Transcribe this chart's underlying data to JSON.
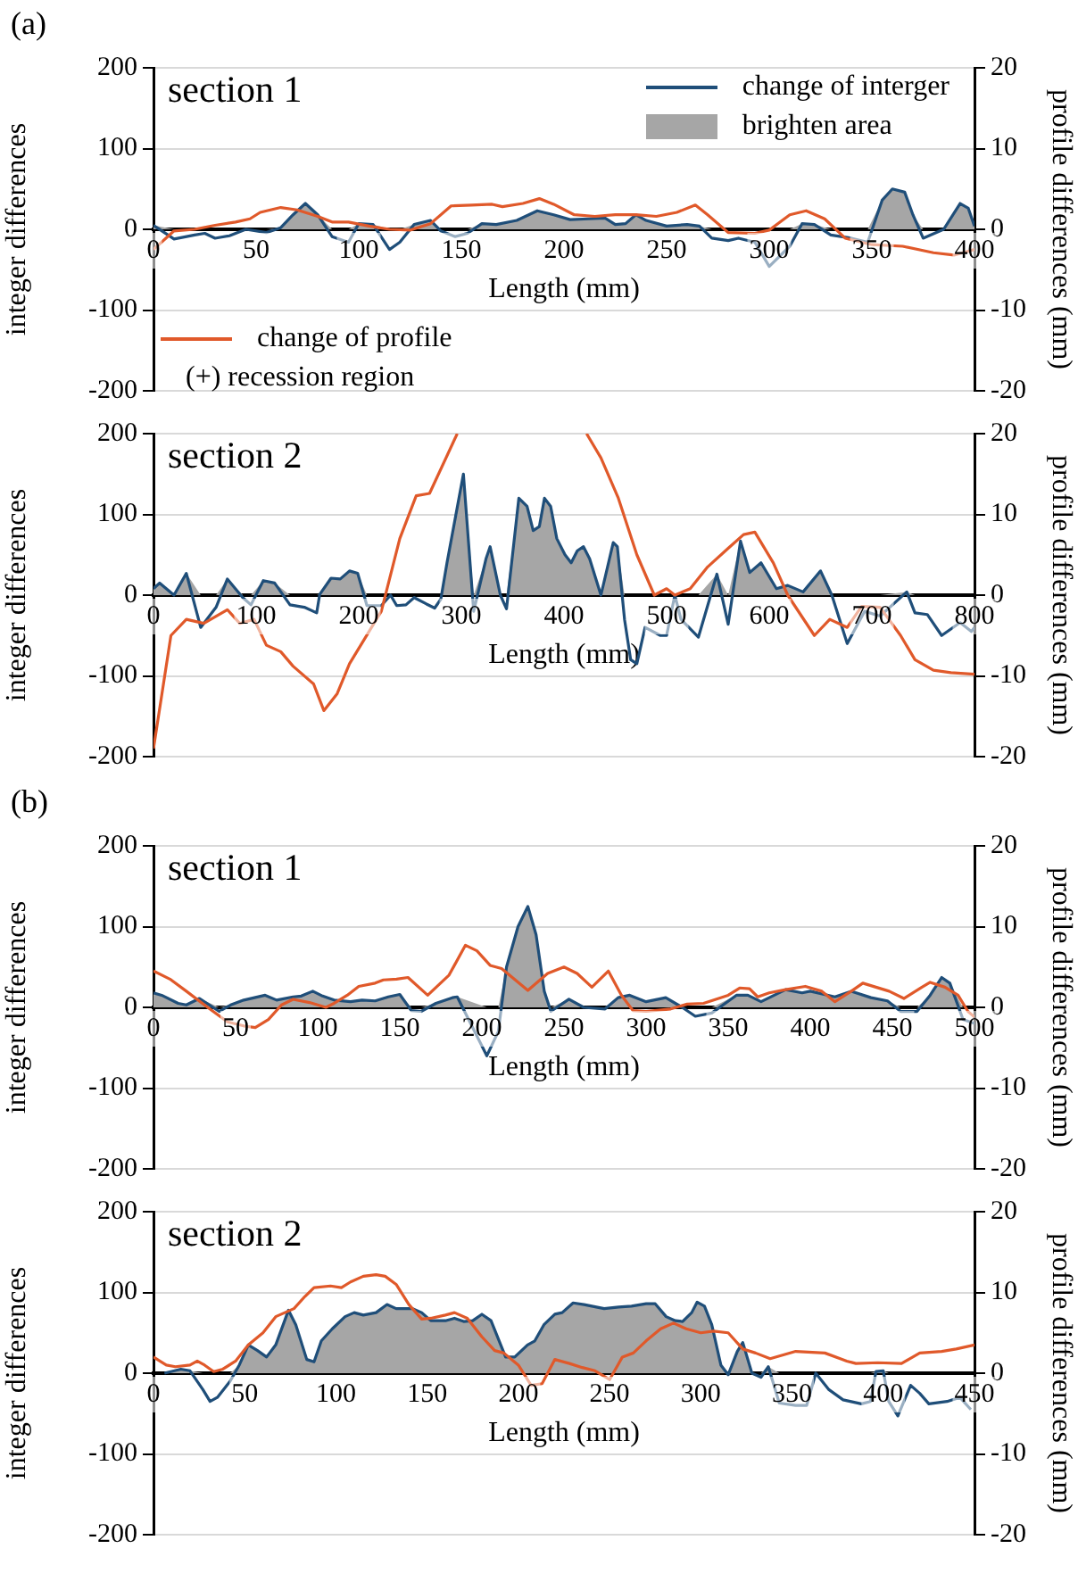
{
  "chart_data": [
    {
      "type": "line",
      "title": "section 1",
      "xlabel": "Length (mm)",
      "ylabel": "integer differences",
      "y2label": "profile differences (mm)",
      "annotations": [
        "(a)",
        "(+) recession region"
      ],
      "xlim": [
        0,
        400
      ],
      "xticks": [
        0,
        50,
        100,
        150,
        200,
        250,
        300,
        350,
        400
      ],
      "ylim": [
        -200,
        200
      ],
      "yticks": [
        -200,
        -100,
        0,
        100,
        200
      ],
      "y2lim": [
        -20,
        20
      ],
      "y2ticks": [
        -20,
        -10,
        0,
        10,
        20
      ],
      "grid": "y",
      "legend": "top right",
      "marker": "none",
      "line_style": "solid",
      "series": [
        {
          "name": "change of interger",
          "type": "line",
          "color": "#1f4e79",
          "x": [
            0,
            10,
            20,
            25,
            30,
            37,
            45,
            55,
            62,
            68,
            74,
            80,
            87,
            95,
            100,
            107,
            115,
            120,
            127,
            135,
            140,
            147,
            153,
            160,
            167,
            177,
            187,
            195,
            203,
            212,
            220,
            225,
            230,
            235,
            240,
            250,
            260,
            266,
            272,
            280,
            285,
            293,
            300,
            310,
            316,
            322,
            330,
            340,
            348,
            355,
            360,
            366,
            370,
            375,
            385,
            393,
            397,
            400
          ],
          "values": [
            5,
            -12,
            -7,
            -5,
            -11,
            -8,
            0,
            -4,
            2,
            18,
            32,
            18,
            -9,
            -16,
            7,
            6,
            -25,
            -16,
            6,
            11,
            -2,
            -9,
            -5,
            7,
            6,
            11,
            23,
            18,
            12,
            13,
            14,
            6,
            7,
            18,
            11,
            4,
            6,
            4,
            -11,
            -14,
            -11,
            -16,
            -46,
            -21,
            7,
            6,
            -7,
            -11,
            -16,
            36,
            50,
            46,
            18,
            -11,
            0,
            32,
            26,
            4
          ]
        },
        {
          "name": "brighten area",
          "type": "area",
          "color": "#a6a6a6",
          "x": [
            0,
            10,
            20,
            25,
            30,
            37,
            45,
            55,
            62,
            68,
            74,
            80,
            87,
            95,
            100,
            107,
            115,
            120,
            127,
            135,
            140,
            147,
            153,
            160,
            167,
            177,
            187,
            195,
            203,
            212,
            220,
            225,
            230,
            235,
            240,
            250,
            260,
            266,
            272,
            280,
            285,
            293,
            300,
            310,
            316,
            322,
            330,
            340,
            348,
            355,
            360,
            366,
            370,
            375,
            385,
            393,
            397,
            400
          ],
          "values": [
            5,
            0,
            0,
            0,
            0,
            0,
            0,
            0,
            2,
            18,
            32,
            18,
            0,
            0,
            7,
            6,
            0,
            0,
            6,
            11,
            0,
            0,
            0,
            7,
            6,
            11,
            23,
            18,
            12,
            13,
            14,
            6,
            7,
            18,
            11,
            4,
            6,
            4,
            0,
            0,
            0,
            0,
            0,
            0,
            7,
            6,
            0,
            0,
            0,
            36,
            50,
            46,
            18,
            0,
            0,
            32,
            26,
            4
          ]
        },
        {
          "name": "change of profile",
          "type": "line",
          "axis": "y2",
          "color": "#e0592a",
          "x": [
            0,
            10,
            20,
            30,
            40,
            47,
            52,
            62,
            70,
            80,
            87,
            95,
            105,
            115,
            125,
            135,
            145,
            155,
            165,
            170,
            180,
            188,
            195,
            205,
            215,
            225,
            235,
            245,
            255,
            264,
            270,
            280,
            293,
            300,
            310,
            318,
            327,
            337,
            350,
            365,
            380,
            390,
            400
          ],
          "values": [
            -2.5,
            -0.2,
            0,
            0.5,
            0.9,
            1.3,
            2.1,
            2.7,
            2.4,
            1.6,
            0.9,
            0.9,
            0.4,
            0,
            -0.1,
            0.7,
            2.9,
            3,
            3.1,
            2.8,
            3.2,
            3.8,
            3.1,
            1.8,
            1.6,
            1.8,
            1.8,
            1.6,
            2.1,
            3,
            1.8,
            -0.4,
            -0.5,
            -0.1,
            1.8,
            2.3,
            1.3,
            -1.1,
            -1.9,
            -2.1,
            -2.9,
            -3.2,
            -2.5
          ]
        }
      ]
    },
    {
      "type": "line",
      "title": "section 2",
      "xlabel": "Length (mm)",
      "ylabel": "integer differences",
      "y2label": "profile differences (mm)",
      "xlim": [
        0,
        800
      ],
      "xticks": [
        0,
        100,
        200,
        300,
        400,
        500,
        600,
        700,
        800
      ],
      "ylim": [
        -200,
        200
      ],
      "yticks": [
        -200,
        -100,
        0,
        100,
        200
      ],
      "y2lim": [
        -20,
        20
      ],
      "y2ticks": [
        -20,
        -10,
        0,
        10,
        20
      ],
      "grid": "y",
      "marker": "none",
      "line_style": "solid",
      "series": [
        {
          "type": "area",
          "color": "#a6a6a6",
          "x": [
            0,
            6,
            20,
            32,
            46,
            61,
            72,
            87,
            95,
            107,
            118,
            133,
            147,
            159,
            162,
            173,
            182,
            191,
            199,
            208,
            222,
            231,
            237,
            246,
            254,
            266,
            274,
            280,
            286,
            302,
            312,
            324,
            328,
            338,
            344,
            356,
            364,
            370,
            376,
            381,
            387,
            393,
            401,
            407,
            413,
            419,
            425,
            436,
            448,
            452,
            459,
            465,
            471,
            479,
            494,
            500,
            508,
            514,
            531,
            549,
            560,
            572,
            581,
            592,
            607,
            618,
            633,
            650,
            661,
            676,
            693,
            708,
            734,
            742,
            754,
            768,
            786,
            797,
            800
          ],
          "values": [
            8,
            15,
            0,
            27,
            0,
            0,
            20,
            0,
            0,
            18,
            15,
            0,
            0,
            0,
            1,
            21,
            20,
            30,
            27,
            0,
            0,
            0,
            0,
            0,
            0,
            0,
            0,
            0,
            40,
            150,
            0,
            45,
            60,
            0,
            0,
            120,
            110,
            80,
            85,
            120,
            110,
            70,
            50,
            40,
            55,
            60,
            45,
            0,
            65,
            60,
            0,
            0,
            0,
            0,
            0,
            0,
            0,
            0,
            0,
            26,
            0,
            67,
            28,
            40,
            8,
            12,
            4,
            30,
            0,
            0,
            0,
            0,
            4,
            0,
            0,
            0,
            0,
            0,
            0
          ]
        },
        {
          "type": "line",
          "color": "#1f4e79",
          "x": [
            0,
            6,
            20,
            32,
            46,
            61,
            72,
            87,
            95,
            107,
            118,
            133,
            147,
            159,
            162,
            173,
            182,
            191,
            199,
            208,
            222,
            231,
            237,
            246,
            254,
            266,
            274,
            280,
            286,
            302,
            312,
            324,
            328,
            338,
            344,
            356,
            364,
            370,
            376,
            381,
            387,
            393,
            401,
            407,
            413,
            419,
            425,
            436,
            448,
            452,
            459,
            465,
            471,
            479,
            494,
            500,
            508,
            514,
            531,
            549,
            560,
            572,
            581,
            592,
            607,
            618,
            633,
            650,
            661,
            676,
            693,
            708,
            734,
            742,
            754,
            768,
            786,
            797,
            800
          ],
          "values": [
            8,
            15,
            0,
            27,
            -40,
            -15,
            20,
            -3,
            -12,
            18,
            15,
            -12,
            -15,
            -22,
            1,
            21,
            20,
            30,
            27,
            -13,
            -13,
            0,
            -13,
            -12,
            -3,
            -11,
            -16,
            -5,
            40,
            150,
            -20,
            45,
            60,
            0,
            -17,
            120,
            110,
            80,
            85,
            120,
            110,
            70,
            50,
            40,
            55,
            60,
            45,
            0,
            65,
            60,
            -30,
            -80,
            -85,
            -40,
            -50,
            -50,
            0,
            -30,
            -52,
            26,
            -36,
            67,
            28,
            40,
            8,
            12,
            4,
            30,
            0,
            -60,
            -20,
            -26,
            4,
            -22,
            -24,
            -50,
            -34,
            -45,
            -40
          ]
        },
        {
          "type": "line",
          "axis": "y2",
          "color": "#e0592a",
          "x": [
            0,
            17,
            32,
            49,
            72,
            84,
            98,
            110,
            124,
            136,
            156,
            166,
            179,
            191,
            222,
            240,
            256,
            269,
            296,
            360,
            422,
            436,
            453,
            471,
            488,
            500,
            508,
            523,
            540,
            560,
            575,
            586,
            604,
            618,
            644,
            659,
            676,
            690,
            708,
            728,
            742,
            760,
            777,
            800
          ],
          "values": [
            -19,
            -5,
            -3,
            -3.5,
            -1.8,
            -3.5,
            -3,
            -6.2,
            -7,
            -8.8,
            -11,
            -14.3,
            -12.2,
            -8.5,
            -2,
            7,
            12.3,
            12.6,
            20,
            null,
            20,
            17,
            12,
            5,
            0,
            0.8,
            0,
            0.8,
            3.5,
            5.8,
            7.5,
            7.8,
            4,
            0,
            -5,
            -3,
            -4,
            -1.4,
            -1.5,
            -5,
            -8,
            -9.3,
            -9.6,
            -9.8
          ]
        }
      ]
    },
    {
      "type": "line",
      "title": "section 1",
      "xlabel": "Length (mm)",
      "ylabel": "integer differences",
      "y2label": "profile differences (mm)",
      "annotations": [
        "(b)"
      ],
      "xlim": [
        0,
        500
      ],
      "xticks": [
        0,
        50,
        100,
        150,
        200,
        250,
        300,
        350,
        400,
        450,
        500
      ],
      "ylim": [
        -200,
        200
      ],
      "yticks": [
        -200,
        -100,
        0,
        100,
        200
      ],
      "y2lim": [
        -20,
        20
      ],
      "y2ticks": [
        -20,
        -10,
        0,
        10,
        20
      ],
      "grid": "y",
      "marker": "none",
      "line_style": "solid",
      "series": [
        {
          "type": "area",
          "color": "#a6a6a6",
          "x": [
            0,
            5,
            15,
            20,
            28,
            40,
            47,
            55,
            68,
            75,
            85,
            90,
            97,
            103,
            110,
            120,
            127,
            135,
            143,
            150,
            157,
            163,
            172,
            182,
            185,
            203,
            210,
            215,
            222,
            228,
            233,
            238,
            242,
            253,
            262,
            275,
            283,
            290,
            300,
            312,
            322,
            330,
            340,
            355,
            362,
            370,
            385,
            395,
            400,
            415,
            425,
            437,
            447,
            455,
            465,
            473,
            480,
            485,
            493,
            500
          ],
          "values": [
            18,
            15,
            5,
            3,
            11,
            0,
            3,
            9,
            15,
            9,
            13,
            14,
            20,
            14,
            9,
            7,
            9,
            8,
            13,
            16,
            0,
            0,
            5,
            12,
            13,
            0,
            0,
            50,
            100,
            125,
            90,
            20,
            0,
            10,
            0,
            0,
            12,
            15,
            7,
            12,
            0,
            0,
            0,
            15,
            15,
            7,
            22,
            18,
            20,
            13,
            20,
            12,
            8,
            0,
            0,
            15,
            37,
            30,
            0,
            0
          ]
        },
        {
          "type": "line",
          "color": "#1f4e79",
          "x": [
            0,
            5,
            15,
            20,
            28,
            40,
            47,
            55,
            68,
            75,
            85,
            90,
            97,
            103,
            110,
            120,
            127,
            135,
            143,
            150,
            157,
            163,
            172,
            182,
            185,
            203,
            210,
            215,
            222,
            228,
            233,
            238,
            242,
            253,
            262,
            275,
            283,
            290,
            300,
            312,
            322,
            330,
            340,
            355,
            362,
            370,
            385,
            395,
            400,
            415,
            425,
            437,
            447,
            455,
            465,
            473,
            480,
            485,
            493,
            500
          ],
          "values": [
            18,
            15,
            5,
            3,
            11,
            -5,
            3,
            9,
            15,
            9,
            13,
            14,
            20,
            14,
            9,
            7,
            9,
            8,
            13,
            16,
            -4,
            -5,
            5,
            12,
            13,
            -60,
            -30,
            50,
            100,
            125,
            90,
            20,
            -5,
            10,
            0,
            -2,
            12,
            15,
            7,
            12,
            0,
            -11,
            -7,
            15,
            15,
            7,
            22,
            18,
            20,
            13,
            20,
            12,
            8,
            -5,
            -5,
            15,
            37,
            30,
            -15,
            -20
          ]
        },
        {
          "type": "line",
          "axis": "y2",
          "color": "#e0592a",
          "x": [
            0,
            10,
            20,
            33,
            45,
            55,
            62,
            70,
            78,
            85,
            95,
            105,
            110,
            118,
            125,
            135,
            140,
            148,
            155,
            167,
            180,
            190,
            197,
            205,
            212,
            228,
            240,
            250,
            258,
            267,
            277,
            285,
            292,
            300,
            315,
            325,
            335,
            350,
            357,
            363,
            368,
            375,
            385,
            397,
            407,
            415,
            425,
            432,
            440,
            448,
            457,
            468,
            473,
            482,
            490,
            496,
            500
          ],
          "values": [
            4.5,
            3.5,
            2,
            0,
            -1.8,
            -2.3,
            -2.5,
            -1.5,
            0.3,
            1,
            0.6,
            0,
            0.5,
            1.5,
            2.6,
            3,
            3.4,
            3.5,
            3.7,
            1.5,
            4,
            7.7,
            7,
            5.2,
            4.8,
            2.1,
            4.2,
            5,
            4.2,
            2.5,
            4.5,
            1.5,
            -0.4,
            -0.5,
            -0.2,
            0.4,
            0.5,
            1.5,
            2.4,
            2.3,
            1.3,
            1.8,
            2.2,
            2.6,
            2,
            0.7,
            2,
            3,
            2.5,
            2,
            1.1,
            2.5,
            3.1,
            2.5,
            1.5,
            -0.5,
            -1.2
          ]
        }
      ]
    },
    {
      "type": "line",
      "title": "section 2",
      "xlabel": "Length (mm)",
      "ylabel": "integer differences",
      "y2label": "profile differences (mm)",
      "xlim": [
        0,
        450
      ],
      "xticks": [
        0,
        50,
        100,
        150,
        200,
        250,
        300,
        350,
        400,
        450
      ],
      "ylim": [
        -200,
        200
      ],
      "yticks": [
        -200,
        -100,
        0,
        100,
        200
      ],
      "y2lim": [
        -20,
        20
      ],
      "y2ticks": [
        -20,
        -10,
        0,
        10,
        20
      ],
      "grid": "y",
      "marker": "none",
      "line_style": "solid",
      "series": [
        {
          "type": "area",
          "color": "#a6a6a6",
          "x": [
            6,
            15,
            20,
            27,
            31,
            35,
            42,
            47,
            52,
            57,
            62,
            67,
            74,
            78,
            84,
            88,
            92,
            98,
            105,
            110,
            115,
            122,
            128,
            133,
            142,
            147,
            152,
            160,
            165,
            170,
            175,
            180,
            185,
            193,
            198,
            205,
            209,
            214,
            220,
            224,
            230,
            236,
            247,
            255,
            262,
            270,
            275,
            281,
            286,
            290,
            295,
            298,
            302,
            306,
            311,
            315,
            320,
            323,
            328,
            333,
            337,
            343,
            352,
            358,
            363,
            370,
            378,
            388,
            393,
            396,
            400,
            403,
            408,
            415,
            420,
            425,
            435,
            442,
            448
          ],
          "values": [
            0,
            5,
            3,
            0,
            0,
            0,
            0,
            10,
            35,
            28,
            20,
            35,
            78,
            60,
            17,
            14,
            40,
            55,
            70,
            75,
            72,
            75,
            85,
            80,
            80,
            75,
            65,
            65,
            68,
            64,
            65,
            73,
            65,
            20,
            20,
            35,
            40,
            60,
            73,
            75,
            87,
            85,
            80,
            82,
            83,
            86,
            86,
            70,
            65,
            64,
            75,
            88,
            83,
            60,
            10,
            0,
            27,
            38,
            0,
            0,
            8,
            0,
            0,
            0,
            0,
            0,
            0,
            0,
            0,
            2,
            3,
            0,
            0,
            0,
            0,
            0,
            0,
            0,
            0
          ]
        },
        {
          "type": "line",
          "color": "#1f4e79",
          "x": [
            6,
            15,
            20,
            27,
            31,
            35,
            42,
            47,
            52,
            57,
            62,
            67,
            74,
            78,
            84,
            88,
            92,
            98,
            105,
            110,
            115,
            122,
            128,
            133,
            142,
            147,
            152,
            160,
            165,
            170,
            175,
            180,
            185,
            193,
            198,
            205,
            209,
            214,
            220,
            224,
            230,
            236,
            247,
            255,
            262,
            270,
            275,
            281,
            286,
            290,
            295,
            298,
            302,
            306,
            311,
            315,
            320,
            323,
            328,
            333,
            337,
            343,
            352,
            358,
            363,
            370,
            378,
            388,
            393,
            396,
            400,
            403,
            408,
            415,
            420,
            425,
            435,
            442,
            448
          ],
          "values": [
            0,
            5,
            3,
            -20,
            -35,
            -30,
            -10,
            10,
            35,
            28,
            20,
            35,
            78,
            60,
            17,
            14,
            40,
            55,
            70,
            75,
            72,
            75,
            85,
            80,
            80,
            75,
            65,
            65,
            68,
            64,
            65,
            73,
            65,
            20,
            20,
            35,
            40,
            60,
            73,
            75,
            87,
            85,
            80,
            82,
            83,
            86,
            86,
            70,
            65,
            64,
            75,
            88,
            83,
            60,
            10,
            -2,
            27,
            38,
            0,
            -5,
            8,
            -37,
            -40,
            -40,
            0,
            -20,
            -33,
            -38,
            -35,
            2,
            3,
            -35,
            -53,
            -15,
            -25,
            -38,
            -35,
            -30,
            -45
          ]
        },
        {
          "type": "line",
          "axis": "y2",
          "color": "#e0592a",
          "x": [
            0,
            7,
            12,
            20,
            24,
            28,
            33,
            38,
            45,
            52,
            60,
            67,
            72,
            77,
            83,
            88,
            97,
            103,
            108,
            115,
            122,
            127,
            133,
            140,
            147,
            152,
            160,
            165,
            172,
            180,
            187,
            192,
            200,
            207,
            213,
            220,
            228,
            235,
            242,
            250,
            257,
            263,
            270,
            278,
            285,
            292,
            300,
            307,
            315,
            323,
            330,
            338,
            352,
            368,
            380,
            385,
            397,
            410,
            420,
            432,
            440,
            450
          ],
          "values": [
            2,
            1,
            0.8,
            1,
            1.5,
            1,
            0.2,
            0.5,
            1.5,
            3.5,
            5,
            7,
            7.5,
            8,
            9.5,
            10.6,
            10.8,
            10.6,
            11.3,
            12,
            12.2,
            12,
            11,
            8.5,
            6.7,
            6.8,
            7.2,
            7.5,
            6.8,
            4.5,
            2.8,
            2.5,
            1,
            -1.5,
            -1.3,
            1.7,
            1.2,
            0.7,
            0.3,
            -0.8,
            2,
            2.5,
            4,
            5.5,
            6.2,
            5.5,
            5,
            5.2,
            5,
            3,
            2.5,
            1.8,
            2.7,
            2.5,
            1.5,
            1.2,
            1.3,
            1.2,
            2.5,
            2.7,
            3,
            3.5
          ]
        }
      ]
    }
  ]
}
